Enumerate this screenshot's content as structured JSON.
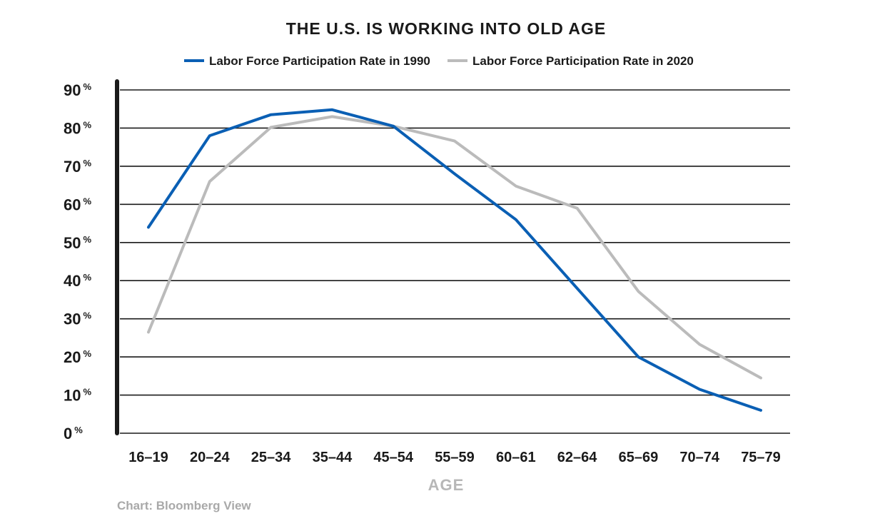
{
  "chart_data": {
    "type": "line",
    "title": "THE U.S. IS WORKING INTO OLD AGE",
    "xlabel": "AGE",
    "ylabel": "",
    "categories": [
      "16–19",
      "20–24",
      "25–34",
      "35–44",
      "45–54",
      "55–59",
      "60–61",
      "62–64",
      "65–69",
      "70–74",
      "75–79"
    ],
    "ylim": [
      0,
      90
    ],
    "yticks": [
      0,
      10,
      20,
      30,
      40,
      50,
      60,
      70,
      80,
      90
    ],
    "ytick_suffix": "%",
    "grid": true,
    "legend_position": "top-center",
    "series": [
      {
        "name": "Labor Force Participation Rate in 1990",
        "color": "#0a5fb4",
        "values": [
          54,
          78,
          83.5,
          84.8,
          80.5,
          68,
          56,
          38,
          20,
          11.5,
          6
        ]
      },
      {
        "name": "Labor Force Participation Rate in 2020",
        "color": "#bbbbbb",
        "values": [
          26.5,
          66,
          80.2,
          83,
          80.5,
          76.6,
          64.8,
          59,
          37.2,
          23.3,
          14.5
        ]
      }
    ],
    "source": "Chart: Bloomberg View"
  }
}
